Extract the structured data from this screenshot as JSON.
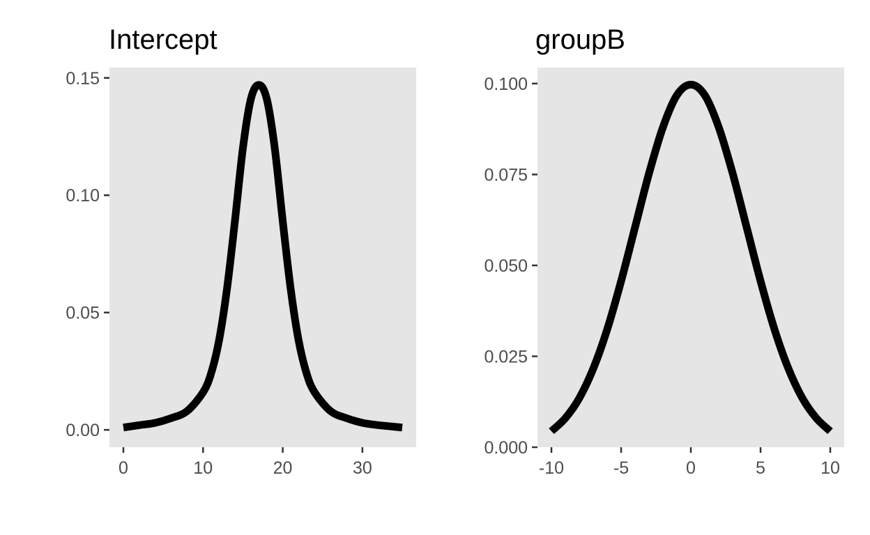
{
  "chart_data": [
    {
      "type": "line",
      "title": "Intercept",
      "xlabel": "",
      "ylabel": "",
      "distribution": "student-t density centered at 17",
      "x": [
        0,
        2,
        4,
        6,
        8,
        10,
        11,
        12,
        13,
        14,
        15,
        16,
        17,
        18,
        19,
        20,
        21,
        22,
        23,
        24,
        26,
        28,
        30,
        32,
        35
      ],
      "y": [
        0.001,
        0.002,
        0.003,
        0.005,
        0.008,
        0.016,
        0.024,
        0.038,
        0.06,
        0.089,
        0.12,
        0.141,
        0.147,
        0.141,
        0.12,
        0.089,
        0.06,
        0.038,
        0.024,
        0.016,
        0.008,
        0.005,
        0.003,
        0.002,
        0.001
      ],
      "xlim": [
        -1.75,
        36.75
      ],
      "ylim": [
        -0.0074,
        0.1544
      ],
      "x_ticks": [
        "0",
        "10",
        "20",
        "30"
      ],
      "x_tick_values": [
        0,
        10,
        20,
        30
      ],
      "y_ticks": [
        "0.00",
        "0.05",
        "0.10",
        "0.15"
      ],
      "y_tick_values": [
        0,
        0.05,
        0.1,
        0.15
      ],
      "grid": false,
      "line_color": "#000000"
    },
    {
      "type": "line",
      "title": "groupB",
      "xlabel": "",
      "ylabel": "",
      "distribution": "normal density, mean 0, sd 4",
      "x": [
        -10,
        -9,
        -8,
        -7,
        -6,
        -5,
        -4,
        -3,
        -2,
        -1,
        0,
        1,
        2,
        3,
        4,
        5,
        6,
        7,
        8,
        9,
        10
      ],
      "y": [
        0.0044,
        0.008,
        0.0135,
        0.0216,
        0.0324,
        0.0457,
        0.0605,
        0.0753,
        0.088,
        0.0968,
        0.0997,
        0.0968,
        0.088,
        0.0753,
        0.0605,
        0.0457,
        0.0324,
        0.0216,
        0.0135,
        0.008,
        0.0044
      ],
      "xlim": [
        -11,
        11
      ],
      "ylim": [
        0,
        0.1044
      ],
      "x_ticks": [
        "-10",
        "-5",
        "0",
        "5",
        "10"
      ],
      "x_tick_values": [
        -10,
        -5,
        0,
        5,
        10
      ],
      "y_ticks": [
        "0.000",
        "0.025",
        "0.050",
        "0.075",
        "0.100"
      ],
      "y_tick_values": [
        0,
        0.025,
        0.05,
        0.075,
        0.1
      ],
      "grid": false,
      "line_color": "#000000"
    }
  ],
  "colors": {
    "panel_background": "#e5e5e5",
    "tick_label": "#4d4d4d",
    "tick_mark": "#333333"
  }
}
